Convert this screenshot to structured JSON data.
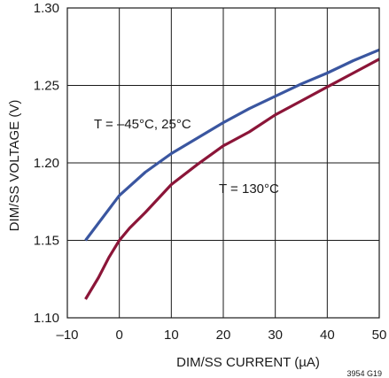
{
  "chart_data": {
    "type": "line",
    "xlabel": "DIM/SS CURRENT (µA)",
    "ylabel": "DIM/SS VOLTAGE (V)",
    "xlim": [
      -10,
      50
    ],
    "ylim": [
      1.1,
      1.3
    ],
    "x_ticks": [
      -10,
      0,
      10,
      20,
      30,
      40,
      50
    ],
    "x_tick_labels": [
      "–10",
      "0",
      "10",
      "20",
      "30",
      "40",
      "50"
    ],
    "y_ticks": [
      1.1,
      1.15,
      1.2,
      1.25,
      1.3
    ],
    "y_tick_labels": [
      "1.10",
      "1.15",
      "1.20",
      "1.25",
      "1.30"
    ],
    "grid": true,
    "series": [
      {
        "name": "T = –45°C, 25°C",
        "color": "#3a56a0",
        "x": [
          -6.5,
          0,
          5,
          10,
          15,
          20,
          25,
          30,
          35,
          40,
          45,
          50
        ],
        "y": [
          1.15,
          1.179,
          1.194,
          1.206,
          1.216,
          1.226,
          1.235,
          1.243,
          1.251,
          1.258,
          1.266,
          1.273
        ]
      },
      {
        "name": "T = 130°C",
        "color": "#8b1538",
        "x": [
          -6.5,
          -4,
          -2,
          0,
          2,
          5,
          10,
          15,
          20,
          25,
          30,
          35,
          40,
          45,
          50
        ],
        "y": [
          1.112,
          1.126,
          1.139,
          1.15,
          1.158,
          1.168,
          1.186,
          1.199,
          1.211,
          1.22,
          1.231,
          1.24,
          1.249,
          1.258,
          1.267
        ]
      }
    ],
    "annotations": [
      {
        "text": "T = –45°C, 25°C",
        "series": 0
      },
      {
        "text": "T = 130°C",
        "series": 1
      }
    ],
    "figure_id": "3954 G19"
  }
}
